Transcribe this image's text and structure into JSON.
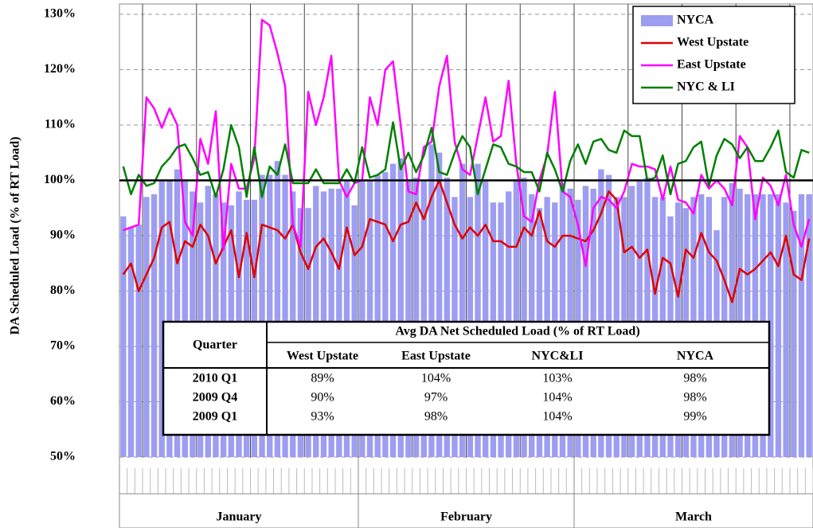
{
  "chart_data": {
    "type": "combo",
    "y_label": "DA Scheduled Load (% of RT Load)",
    "ylim": [
      50,
      130
    ],
    "yticks": [
      {
        "value": 50,
        "label": "50%"
      },
      {
        "value": 60,
        "label": "60%"
      },
      {
        "value": 70,
        "label": "70%"
      },
      {
        "value": 80,
        "label": "80%"
      },
      {
        "value": 90,
        "label": "90%"
      },
      {
        "value": 100,
        "label": "100%"
      },
      {
        "value": 110,
        "label": "110%"
      },
      {
        "value": 120,
        "label": "120%"
      },
      {
        "value": 130,
        "label": "130%"
      }
    ],
    "reference_line": 100,
    "grid": true,
    "legend": "top-right",
    "months": [
      {
        "label": "January",
        "days": 31
      },
      {
        "label": "February",
        "days": 28
      },
      {
        "label": "March",
        "days": 31
      }
    ],
    "series": [
      {
        "name": "NYCA",
        "type": "bar",
        "color": "#9d9df2",
        "values": [
          93.5,
          91.5,
          92,
          97,
          97.5,
          100,
          100,
          102,
          100,
          98,
          96,
          99,
          97.5,
          96,
          95.5,
          98,
          96.5,
          96.5,
          101,
          101,
          103.5,
          101,
          98,
          95,
          95,
          99,
          98,
          98.5,
          98.5,
          100,
          95.5,
          100,
          100,
          101,
          101.5,
          103,
          104,
          100,
          100.5,
          100,
          106.5,
          105,
          100.5,
          97,
          103,
          97,
          103,
          100,
          96,
          96,
          98,
          100,
          100.5,
          97.5,
          95,
          97,
          96,
          99.5,
          98.5,
          96.5,
          99,
          98.5,
          102,
          101,
          97,
          97,
          99,
          100,
          100.5,
          97,
          97,
          93.5,
          96,
          95,
          97,
          97.5,
          97,
          91,
          97,
          99.5,
          98.5,
          97.5,
          97.5,
          97.5,
          97.5,
          97.5,
          96,
          94.5,
          97.5,
          97.5
        ]
      },
      {
        "name": "West Upstate",
        "type": "line",
        "color": "#e00000",
        "values": [
          83,
          85,
          80,
          83,
          86,
          91.5,
          92.5,
          85,
          89,
          88,
          92,
          90,
          85,
          88,
          91,
          82.5,
          90.5,
          82.5,
          92,
          91.5,
          91,
          89.5,
          92,
          87,
          84,
          88,
          89.5,
          87,
          84,
          91.5,
          86.5,
          88,
          93,
          92.5,
          92,
          89,
          92,
          92.5,
          96,
          93,
          97,
          100,
          96,
          92,
          89.5,
          91.5,
          90,
          92,
          89,
          89,
          88,
          88,
          91.5,
          90,
          94.5,
          89,
          88,
          90,
          90,
          89.5,
          89,
          91,
          94,
          98,
          96.5,
          87,
          88,
          86,
          87.5,
          79.5,
          86,
          85,
          79,
          87.5,
          86,
          90.5,
          87,
          85.5,
          82,
          78,
          84,
          83,
          84,
          85.5,
          87,
          84.5,
          90,
          83,
          82,
          89.5
        ]
      },
      {
        "name": "East Upstate",
        "type": "line",
        "color": "#ff00ff",
        "values": [
          91,
          91.5,
          92,
          115,
          113,
          109.5,
          113,
          110,
          92.5,
          90,
          107.5,
          103,
          112.5,
          87.5,
          103,
          98.5,
          98.5,
          104,
          129,
          128,
          123,
          117,
          92,
          88,
          116,
          110,
          115,
          122.5,
          100,
          97,
          99.5,
          100,
          115,
          110,
          120,
          121.5,
          110,
          98,
          97.5,
          106,
          107,
          117,
          122.5,
          107,
          102,
          101,
          108,
          115,
          107,
          108,
          118,
          103,
          93.5,
          92.5,
          100,
          104.5,
          116,
          98,
          97,
          92,
          84.5,
          95,
          97,
          96.5,
          95,
          98,
          103,
          102.5,
          102.5,
          102,
          96.5,
          102.5,
          96.5,
          96,
          94,
          101,
          98.5,
          100,
          98.5,
          95.5,
          108,
          106,
          93,
          100.5,
          99,
          95.5,
          101,
          92,
          88,
          93
        ]
      },
      {
        "name": "NYC & LI",
        "type": "line",
        "color": "#008000",
        "values": [
          102.5,
          97.5,
          101,
          99,
          99.5,
          102.5,
          104,
          106,
          106.5,
          104,
          101,
          101.5,
          97,
          102,
          110,
          106,
          97,
          106,
          97,
          102.5,
          101,
          106.5,
          99.5,
          99.5,
          99.5,
          102,
          99.5,
          99.5,
          99.5,
          102,
          99.5,
          106,
          100.5,
          101,
          102,
          110.5,
          102,
          105,
          101.5,
          104.5,
          109.5,
          101.5,
          101,
          105,
          108,
          106,
          97.5,
          102,
          106.5,
          106,
          103,
          102.5,
          101.5,
          101.5,
          98,
          105,
          102,
          98,
          103.5,
          106.5,
          103,
          107,
          107.5,
          105.5,
          105,
          109,
          108,
          108,
          100,
          100.5,
          104.5,
          97.5,
          103,
          103.5,
          106,
          107,
          99,
          104.5,
          107.5,
          106.5,
          104,
          106,
          103.5,
          103.5,
          106,
          109,
          101.5,
          100.5,
          105.5,
          105
        ]
      }
    ]
  },
  "table": {
    "quarter_header": "Quarter",
    "group_header": "Avg DA Net Scheduled Load (% of RT Load)",
    "columns": [
      "West Upstate",
      "East Upstate",
      "NYC&LI",
      "NYCA"
    ],
    "rows": [
      [
        "2010 Q1",
        "89%",
        "104%",
        "103%",
        "98%"
      ],
      [
        "2009 Q4",
        "90%",
        "97%",
        "104%",
        "98%"
      ],
      [
        "2009 Q1",
        "93%",
        "98%",
        "104%",
        "99%"
      ]
    ]
  }
}
